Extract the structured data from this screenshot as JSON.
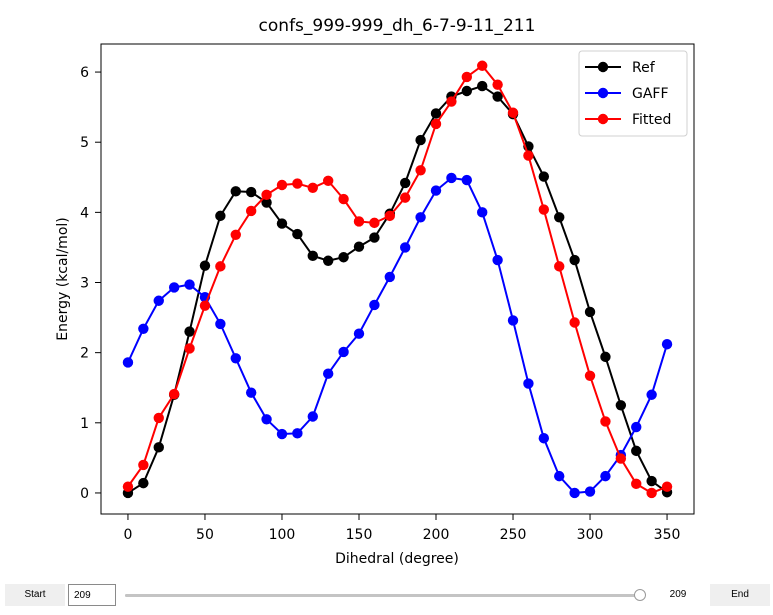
{
  "chart_data": {
    "type": "line",
    "title": "confs_999-999_dh_6-7-9-11_211",
    "xlabel": "Dihedral (degree)",
    "ylabel": "Energy (kcal/mol)",
    "xlim": [
      -17.5,
      367.5
    ],
    "ylim": [
      -0.3,
      6.4
    ],
    "xticks": [
      0,
      50,
      100,
      150,
      200,
      250,
      300,
      350
    ],
    "yticks": [
      0,
      1,
      2,
      3,
      4,
      5,
      6
    ],
    "grid": false,
    "legend_position": "top-right",
    "x": [
      0,
      10,
      20,
      30,
      40,
      50,
      60,
      70,
      80,
      90,
      100,
      110,
      120,
      130,
      140,
      150,
      160,
      170,
      180,
      190,
      200,
      210,
      220,
      230,
      240,
      250,
      260,
      270,
      280,
      290,
      300,
      310,
      320,
      330,
      340,
      350
    ],
    "series": [
      {
        "name": "Ref",
        "color": "#000000",
        "values": [
          0.0,
          0.14,
          0.65,
          1.4,
          2.3,
          3.24,
          3.95,
          4.3,
          4.29,
          4.14,
          3.84,
          3.69,
          3.38,
          3.31,
          3.36,
          3.51,
          3.64,
          3.98,
          4.42,
          5.03,
          5.41,
          5.65,
          5.73,
          5.8,
          5.65,
          5.4,
          4.94,
          4.51,
          3.93,
          3.32,
          2.58,
          1.94,
          1.25,
          0.6,
          0.17,
          0.01
        ]
      },
      {
        "name": "GAFF",
        "color": "#0000ff",
        "values": [
          1.86,
          2.34,
          2.74,
          2.93,
          2.97,
          2.79,
          2.41,
          1.92,
          1.43,
          1.05,
          0.84,
          0.85,
          1.09,
          1.7,
          2.01,
          2.27,
          2.68,
          3.08,
          3.5,
          3.93,
          4.31,
          4.49,
          4.46,
          4.0,
          3.32,
          2.46,
          1.56,
          0.78,
          0.24,
          0.0,
          0.02,
          0.24,
          0.54,
          0.94,
          1.4,
          2.12
        ]
      },
      {
        "name": "Fitted",
        "color": "#ff0000",
        "values": [
          0.09,
          0.4,
          1.07,
          1.41,
          2.06,
          2.67,
          3.23,
          3.68,
          4.02,
          4.25,
          4.39,
          4.41,
          4.35,
          4.45,
          4.19,
          3.87,
          3.85,
          3.95,
          4.21,
          4.6,
          5.26,
          5.58,
          5.93,
          6.09,
          5.82,
          5.42,
          4.81,
          4.04,
          3.23,
          2.43,
          1.67,
          1.02,
          0.49,
          0.13,
          0.0,
          0.09
        ]
      }
    ]
  },
  "controls": {
    "start_label": "Start",
    "end_label": "End",
    "frame_value": "209",
    "frame_readout": "209",
    "slider_min": 0,
    "slider_max": 209,
    "slider_value": 209
  }
}
